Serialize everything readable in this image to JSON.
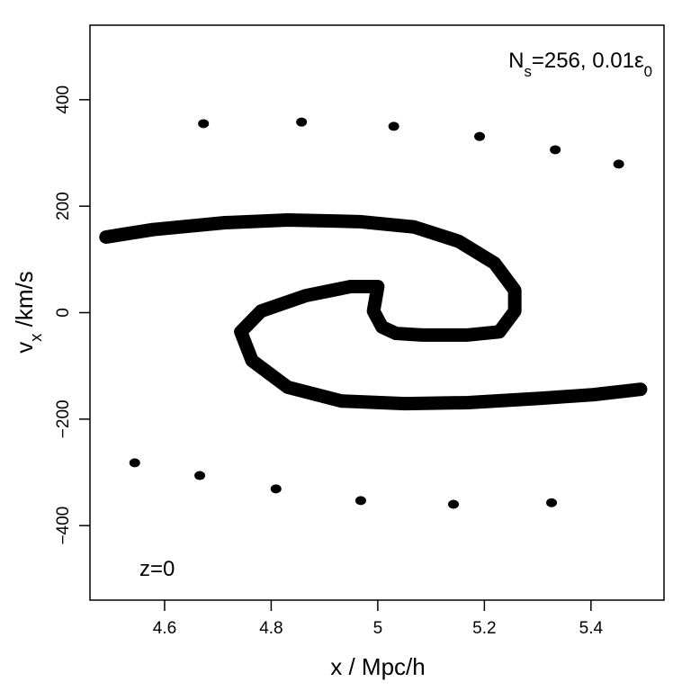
{
  "chart_data": {
    "type": "scatter",
    "annotation": [
      {
        "text": "N"
      },
      {
        "text": "s",
        "sub": true
      },
      {
        "text": "=256, 0.01ε"
      },
      {
        "text": "0",
        "sub": true
      }
    ],
    "label": "z=0",
    "x_label": "x / Mpc/h",
    "y_label": [
      {
        "text": "v"
      },
      {
        "text": "x",
        "sub": true
      },
      {
        "text": " /km/s"
      }
    ],
    "xlim": [
      4.46,
      5.537
    ],
    "ylim": [
      -540,
      540
    ],
    "xticks": [
      4.6,
      4.8,
      5,
      5.2,
      5.4
    ],
    "yticks": [
      {
        "value": -400,
        "label": "−400"
      },
      {
        "value": -200,
        "label": "−200"
      },
      0,
      200,
      400
    ],
    "series": [
      {
        "type": "line",
        "color": "#000000",
        "x": [
          4.49,
          4.578,
          4.713,
          4.831,
          4.966,
          5.068,
          5.152,
          5.219,
          5.257,
          5.257,
          5.228,
          5.169,
          5.084,
          5.034,
          5.008,
          4.992,
          5.0,
          4.949,
          4.865,
          4.781,
          4.743,
          4.764,
          4.831,
          4.932,
          5.051,
          5.169,
          5.304,
          5.405,
          5.493
        ],
        "y": [
          142,
          156,
          169,
          174,
          171,
          161,
          134,
          93,
          42,
          3,
          -36,
          -42,
          -42,
          -39,
          -27,
          3,
          49,
          49,
          32,
          3,
          -36,
          -90,
          -140,
          -166,
          -171,
          -169,
          -161,
          -154,
          -144
        ]
      },
      {
        "type": "scatter",
        "color": "#000000",
        "x": [
          4.673,
          4.857,
          5.03,
          5.191,
          5.333,
          5.452,
          4.544,
          4.666,
          4.809,
          4.968,
          5.142,
          5.326
        ],
        "y": [
          355,
          358,
          350,
          331,
          306,
          279,
          -282,
          -306,
          -331,
          -353,
          -360,
          -357
        ]
      }
    ]
  }
}
